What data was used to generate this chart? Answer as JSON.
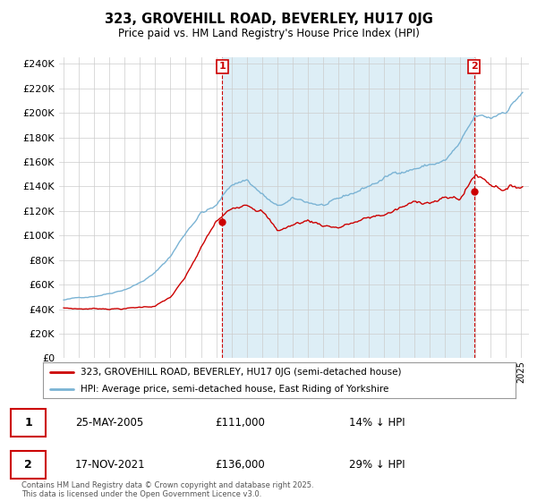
{
  "title": "323, GROVEHILL ROAD, BEVERLEY, HU17 0JG",
  "subtitle": "Price paid vs. HM Land Registry's House Price Index (HPI)",
  "ylim": [
    0,
    245000
  ],
  "yticks": [
    0,
    20000,
    40000,
    60000,
    80000,
    100000,
    120000,
    140000,
    160000,
    180000,
    200000,
    220000,
    240000
  ],
  "hpi_color": "#7ab3d4",
  "hpi_fill_color": "#ddeef6",
  "price_color": "#cc0000",
  "legend_label_price": "323, GROVEHILL ROAD, BEVERLEY, HU17 0JG (semi-detached house)",
  "legend_label_hpi": "HPI: Average price, semi-detached house, East Riding of Yorkshire",
  "annotation1_year": 2005.4,
  "annotation1_price": 111000,
  "annotation2_year": 2021.9,
  "annotation2_price": 136000,
  "table_data": [
    [
      "1",
      "25-MAY-2005",
      "£111,000",
      "14% ↓ HPI"
    ],
    [
      "2",
      "17-NOV-2021",
      "£136,000",
      "29% ↓ HPI"
    ]
  ],
  "footer": "Contains HM Land Registry data © Crown copyright and database right 2025.\nThis data is licensed under the Open Government Licence v3.0.",
  "background_color": "#ffffff",
  "grid_color": "#cccccc",
  "xlim_min": 1994.7,
  "xlim_max": 2025.5
}
